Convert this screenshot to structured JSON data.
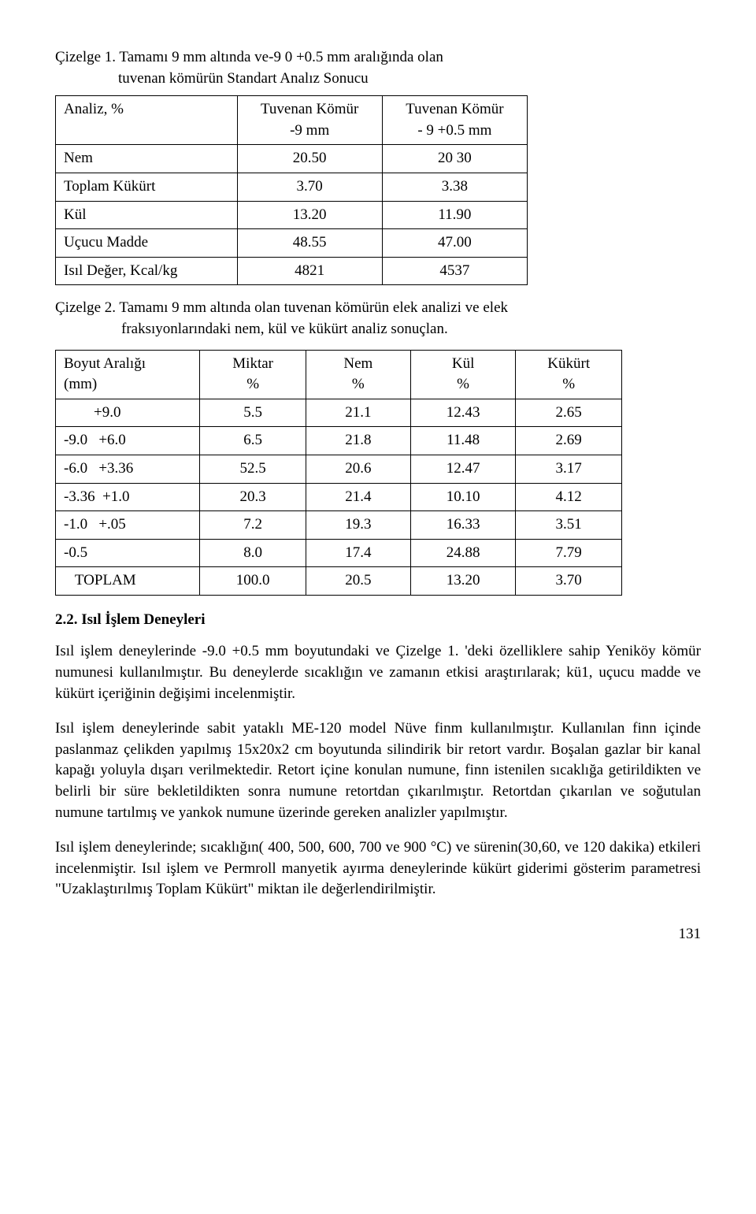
{
  "table1": {
    "caption_line1": "Çizelge 1. Tamamı 9 mm altında ve-9 0 +0.5 mm aralığında olan",
    "caption_line2": "tuvenan kömürün Standart Analız Sonucu",
    "header": [
      "Analiz, %",
      "Tuvenan Kömür\n-9 mm",
      "Tuvenan Kömür\n- 9 +0.5 mm"
    ],
    "rows": [
      [
        "Nem",
        "20.50",
        "20 30"
      ],
      [
        "Toplam Kükürt",
        "3.70",
        "3.38"
      ],
      [
        "Kül",
        "13.20",
        "11.90"
      ],
      [
        "Uçucu Madde",
        "48.55",
        "47.00"
      ],
      [
        "Isıl Değer, Kcal/kg",
        "4821",
        "4537"
      ]
    ]
  },
  "table2": {
    "caption_line1": "Çizelge 2. Tamamı 9 mm altında olan tuvenan kömürün elek analizi ve elek",
    "caption_line2": "fraksıyonlarındaki nem, kül ve kükürt analiz sonuçlan.",
    "header_top": [
      "Boyut Aralığı",
      "Miktar",
      "Nem",
      "Kül",
      "Kükürt"
    ],
    "header_bot": [
      "(mm)",
      "%",
      "%",
      "%",
      "%"
    ],
    "rows": [
      [
        "        +9.0",
        "5.5",
        "21.1",
        "12.43",
        "2.65"
      ],
      [
        "-9.0   +6.0",
        "6.5",
        "21.8",
        "11.48",
        "2.69"
      ],
      [
        "-6.0   +3.36",
        "52.5",
        "20.6",
        "12.47",
        "3.17"
      ],
      [
        "-3.36  +1.0",
        "20.3",
        "21.4",
        "10.10",
        "4.12"
      ],
      [
        "-1.0   +.05",
        "7.2",
        "19.3",
        "16.33",
        "3.51"
      ],
      [
        "-0.5",
        "8.0",
        "17.4",
        "24.88",
        "7.79"
      ],
      [
        "   TOPLAM",
        "100.0",
        "20.5",
        "13.20",
        "3.70"
      ]
    ]
  },
  "section_heading": "2.2. Isıl İşlem Deneyleri",
  "para1": "Isıl işlem deneylerinde -9.0 +0.5 mm boyutundaki ve Çizelge 1. 'deki özelliklere sahip Yeniköy kömür numunesi kullanılmıştır. Bu deneylerde sıcaklığın ve zamanın etkisi araştırılarak; kü1, uçucu madde ve kükürt içeriğinin değişimi incelenmiştir.",
  "para2": "Isıl işlem deneylerinde sabit yataklı ME-120 model Nüve finm kullanılmıştır. Kullanılan finn içinde paslanmaz çelikden yapılmış 15x20x2 cm boyutunda silindirik bir retort vardır. Boşalan gazlar bir kanal kapağı yoluyla dışarı verilmektedir. Retort içine konulan numune, finn istenilen sıcaklığa getirildikten ve belirli bir süre bekletildikten sonra numune retortdan çıkarılmıştır. Retortdan çıkarılan ve soğutulan numune tartılmış ve yankok numune üzerinde gereken analizler yapılmıştır.",
  "para3": "Isıl işlem deneylerinde; sıcaklığın( 400, 500, 600, 700 ve 900 °C) ve sürenin(30,60, ve 120 dakika) etkileri incelenmiştir. Isıl işlem ve Permroll manyetik ayırma deneylerinde kükürt giderimi gösterim parametresi \"Uzaklaştırılmış Toplam Kükürt\" miktan ile değerlendirilmiştir.",
  "page_number": "131"
}
